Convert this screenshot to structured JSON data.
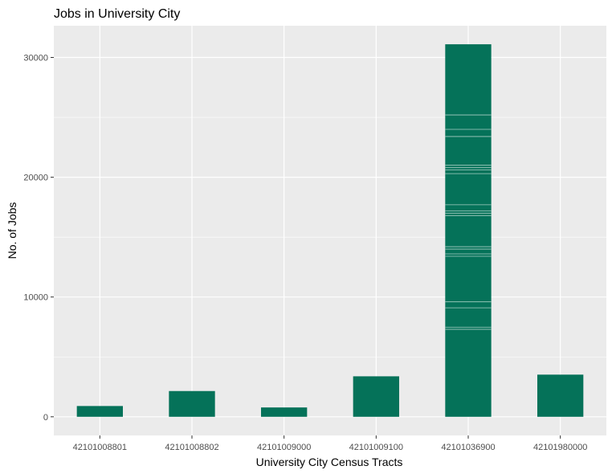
{
  "chart_data": {
    "type": "bar",
    "title": "Jobs in University City",
    "xlabel": "University City Census Tracts",
    "ylabel": "No. of Jobs",
    "categories": [
      "42101008801",
      "42101008802",
      "42101009000",
      "42101009100",
      "42101036900",
      "42101980000"
    ],
    "values": [
      900,
      2150,
      780,
      3380,
      31100,
      3520
    ],
    "ylim": [
      -1556,
      32650
    ],
    "yticks": [
      0,
      10000,
      20000,
      30000
    ],
    "ytick_labels": [
      "0",
      "10000",
      "20000",
      "30000"
    ],
    "bar_color": "#057259",
    "panel_background": "#ebebeb",
    "grid": true,
    "legend": "none",
    "stacked_segment_boundaries": {
      "category": "42101036900",
      "values": [
        7300,
        7480,
        9100,
        9600,
        13400,
        13600,
        14000,
        14200,
        16800,
        17000,
        17200,
        17700,
        20300,
        20600,
        20800,
        21000,
        23400,
        24000,
        25200
      ]
    }
  }
}
